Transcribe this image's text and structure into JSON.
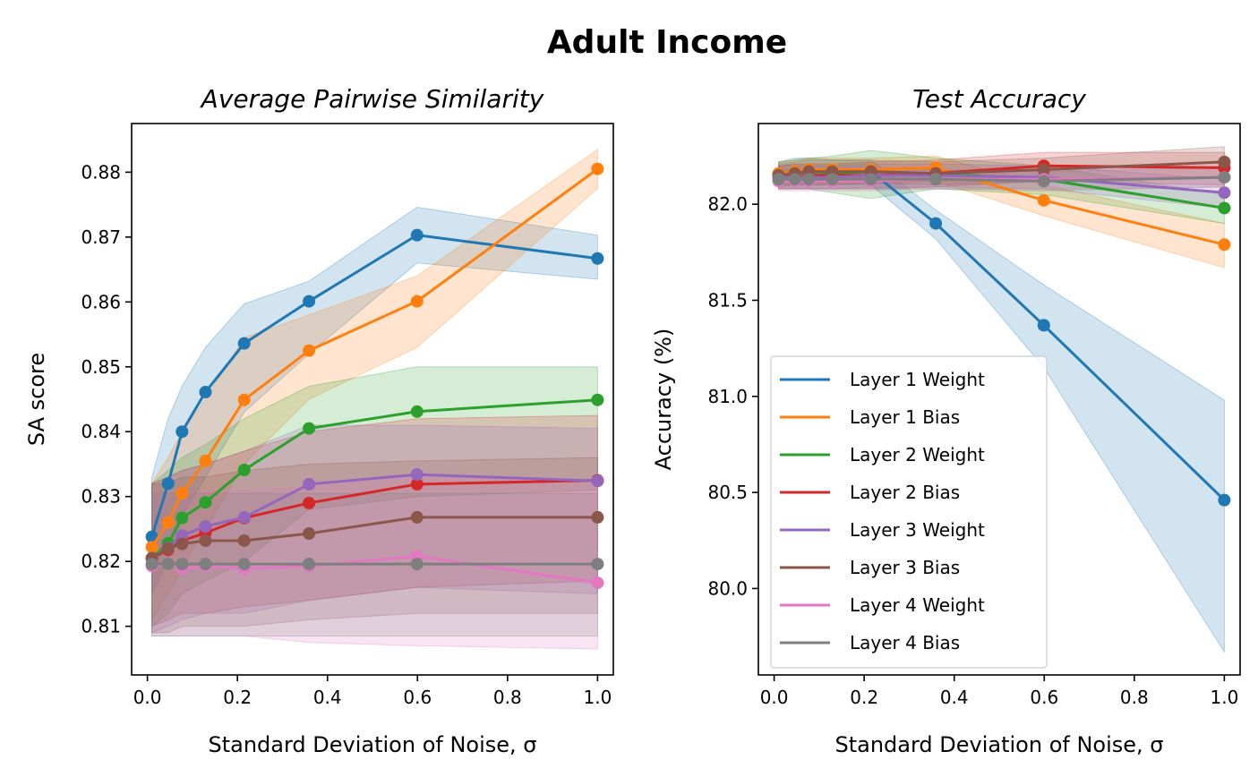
{
  "suptitle": "Adult Income",
  "chart_data": [
    {
      "type": "line",
      "title": "Average Pairwise Similarity",
      "xlabel": "Standard Deviation of Noise, σ",
      "ylabel": "SA score",
      "xlim": [
        -0.035,
        1.035
      ],
      "ylim": [
        0.8025,
        0.8875
      ],
      "xticks": [
        0.0,
        0.2,
        0.4,
        0.6,
        0.8,
        1.0
      ],
      "xtick_labels": [
        "0.0",
        "0.2",
        "0.4",
        "0.6",
        "0.8",
        "1.0"
      ],
      "yticks": [
        0.81,
        0.82,
        0.83,
        0.84,
        0.85,
        0.86,
        0.87,
        0.88
      ],
      "ytick_labels": [
        "0.81",
        "0.82",
        "0.83",
        "0.84",
        "0.85",
        "0.86",
        "0.87",
        "0.88"
      ],
      "x": [
        0.01,
        0.046,
        0.077,
        0.129,
        0.215,
        0.359,
        0.599,
        1.0
      ],
      "series": [
        {
          "name": "Layer 1 Weight",
          "color": "#1f77b4",
          "values": [
            0.8238,
            0.832,
            0.84,
            0.8461,
            0.8536,
            0.8601,
            0.8703,
            0.8667
          ],
          "lower": [
            0.815,
            0.82,
            0.827,
            0.833,
            0.843,
            0.852,
            0.866,
            0.8635
          ],
          "upper": [
            0.833,
            0.842,
            0.847,
            0.853,
            0.8597,
            0.8632,
            0.8746,
            0.8703
          ]
        },
        {
          "name": "Layer 1 Bias",
          "color": "#ff7f0e",
          "values": [
            0.8222,
            0.826,
            0.8305,
            0.8355,
            0.8449,
            0.8525,
            0.8601,
            0.8805
          ],
          "lower": [
            0.811,
            0.815,
            0.819,
            0.825,
            0.835,
            0.845,
            0.853,
            0.8775
          ],
          "upper": [
            0.832,
            0.836,
            0.84,
            0.845,
            0.8545,
            0.858,
            0.864,
            0.8835
          ]
        },
        {
          "name": "Layer 2 Weight",
          "color": "#2ca02c",
          "values": [
            0.8205,
            0.8228,
            0.8267,
            0.8291,
            0.8341,
            0.8405,
            0.8431,
            0.8449
          ],
          "lower": [
            0.81,
            0.812,
            0.815,
            0.817,
            0.82,
            0.828,
            0.83,
            0.831
          ],
          "upper": [
            0.832,
            0.834,
            0.836,
            0.838,
            0.842,
            0.847,
            0.85,
            0.85
          ]
        },
        {
          "name": "Layer 2 Bias",
          "color": "#d62728",
          "values": [
            0.8205,
            0.8218,
            0.8232,
            0.8244,
            0.8267,
            0.829,
            0.8319,
            0.8325
          ],
          "lower": [
            0.81,
            0.811,
            0.812,
            0.812,
            0.813,
            0.814,
            0.816,
            0.817
          ],
          "upper": [
            0.832,
            0.833,
            0.834,
            0.835,
            0.837,
            0.84,
            0.842,
            0.8425
          ]
        },
        {
          "name": "Layer 3 Weight",
          "color": "#9467bd",
          "values": [
            0.8205,
            0.8221,
            0.824,
            0.8254,
            0.8268,
            0.8319,
            0.8334,
            0.8324
          ],
          "lower": [
            0.809,
            0.81,
            0.811,
            0.812,
            0.812,
            0.814,
            0.816,
            0.815
          ],
          "upper": [
            0.832,
            0.833,
            0.834,
            0.835,
            0.837,
            0.841,
            0.841,
            0.8405
          ]
        },
        {
          "name": "Layer 3 Bias",
          "color": "#8c564b",
          "values": [
            0.8205,
            0.822,
            0.8227,
            0.8232,
            0.8232,
            0.8243,
            0.8268,
            0.8268
          ],
          "lower": [
            0.809,
            0.809,
            0.81,
            0.81,
            0.81,
            0.811,
            0.812,
            0.812
          ],
          "upper": [
            0.832,
            0.832,
            0.833,
            0.833,
            0.834,
            0.835,
            0.8355,
            0.836
          ]
        },
        {
          "name": "Layer 4 Weight",
          "color": "#e377c2",
          "values": [
            0.8193,
            0.8196,
            0.8189,
            0.8193,
            0.8189,
            0.8193,
            0.8208,
            0.8167
          ],
          "lower": [
            0.8085,
            0.8085,
            0.8085,
            0.8085,
            0.8085,
            0.8075,
            0.807,
            0.8065
          ],
          "upper": [
            0.8305,
            0.8305,
            0.8305,
            0.831,
            0.831,
            0.8315,
            0.833,
            0.8325
          ]
        },
        {
          "name": "Layer 4 Bias",
          "color": "#7f7f7f",
          "values": [
            0.8196,
            0.8196,
            0.8196,
            0.8196,
            0.8196,
            0.8196,
            0.8196,
            0.8196
          ],
          "lower": [
            0.8085,
            0.8085,
            0.8085,
            0.8085,
            0.8085,
            0.8085,
            0.8085,
            0.8085
          ],
          "upper": [
            0.8305,
            0.8305,
            0.8305,
            0.8305,
            0.8305,
            0.8305,
            0.8305,
            0.8305
          ]
        }
      ]
    },
    {
      "type": "line",
      "title": "Test Accuracy",
      "xlabel": "Standard Deviation of Noise, σ",
      "ylabel": "Accuracy (%)",
      "xlim": [
        -0.035,
        1.035
      ],
      "ylim": [
        79.55,
        82.42
      ],
      "xticks": [
        0.0,
        0.2,
        0.4,
        0.6,
        0.8,
        1.0
      ],
      "xtick_labels": [
        "0.0",
        "0.2",
        "0.4",
        "0.6",
        "0.8",
        "1.0"
      ],
      "yticks": [
        80.0,
        80.5,
        81.0,
        81.5,
        82.0
      ],
      "ytick_labels": [
        "80.0",
        "80.5",
        "81.0",
        "81.5",
        "82.0"
      ],
      "legend": "lower-left",
      "x": [
        0.01,
        0.046,
        0.077,
        0.129,
        0.215,
        0.359,
        0.599,
        1.0
      ],
      "series": [
        {
          "name": "Layer 1 Weight",
          "color": "#1f77b4",
          "values": [
            82.16,
            82.17,
            82.17,
            82.16,
            82.17,
            81.9,
            81.37,
            80.46
          ],
          "lower": [
            82.1,
            82.1,
            82.1,
            82.1,
            82.1,
            81.82,
            81.15,
            79.67
          ],
          "upper": [
            82.22,
            82.24,
            82.24,
            82.23,
            82.23,
            81.97,
            81.58,
            80.98
          ]
        },
        {
          "name": "Layer 1 Bias",
          "color": "#ff7f0e",
          "values": [
            82.16,
            82.17,
            82.18,
            82.18,
            82.18,
            82.19,
            82.02,
            81.79
          ],
          "lower": [
            82.1,
            82.1,
            82.11,
            82.11,
            82.11,
            82.12,
            81.94,
            81.67
          ],
          "upper": [
            82.22,
            82.23,
            82.24,
            82.24,
            82.24,
            82.25,
            82.1,
            81.9
          ]
        },
        {
          "name": "Layer 2 Weight",
          "color": "#2ca02c",
          "values": [
            82.15,
            82.16,
            82.17,
            82.16,
            82.17,
            82.16,
            82.13,
            81.98
          ],
          "lower": [
            82.08,
            82.08,
            82.08,
            82.06,
            82.03,
            82.08,
            82.05,
            81.9
          ],
          "upper": [
            82.22,
            82.23,
            82.24,
            82.25,
            82.28,
            82.24,
            82.2,
            82.05
          ]
        },
        {
          "name": "Layer 2 Bias",
          "color": "#d62728",
          "values": [
            82.14,
            82.14,
            82.15,
            82.15,
            82.15,
            82.16,
            82.2,
            82.19
          ],
          "lower": [
            82.08,
            82.08,
            82.08,
            82.08,
            82.08,
            82.09,
            82.12,
            82.1
          ],
          "upper": [
            82.2,
            82.21,
            82.21,
            82.21,
            82.22,
            82.23,
            82.27,
            82.27
          ]
        },
        {
          "name": "Layer 3 Weight",
          "color": "#9467bd",
          "values": [
            82.14,
            82.14,
            82.14,
            82.14,
            82.15,
            82.15,
            82.14,
            82.06
          ],
          "lower": [
            82.08,
            82.08,
            82.08,
            82.08,
            82.09,
            82.09,
            82.08,
            81.98
          ],
          "upper": [
            82.2,
            82.2,
            82.2,
            82.2,
            82.21,
            82.21,
            82.2,
            82.13
          ]
        },
        {
          "name": "Layer 3 Bias",
          "color": "#8c564b",
          "values": [
            82.15,
            82.16,
            82.17,
            82.17,
            82.17,
            82.16,
            82.18,
            82.22
          ],
          "lower": [
            82.09,
            82.1,
            82.1,
            82.1,
            82.11,
            82.1,
            82.12,
            82.14
          ],
          "upper": [
            82.21,
            82.22,
            82.23,
            82.23,
            82.23,
            82.22,
            82.24,
            82.3
          ]
        },
        {
          "name": "Layer 4 Weight",
          "color": "#e377c2",
          "values": [
            82.12,
            82.12,
            82.12,
            82.12,
            82.12,
            82.13,
            82.13,
            82.14
          ],
          "lower": [
            82.07,
            82.07,
            82.07,
            82.07,
            82.07,
            82.08,
            82.08,
            82.09
          ],
          "upper": [
            82.17,
            82.17,
            82.17,
            82.17,
            82.17,
            82.18,
            82.18,
            82.19
          ]
        },
        {
          "name": "Layer 4 Bias",
          "color": "#7f7f7f",
          "values": [
            82.13,
            82.13,
            82.13,
            82.13,
            82.13,
            82.13,
            82.12,
            82.14
          ],
          "lower": [
            82.08,
            82.08,
            82.08,
            82.08,
            82.08,
            82.08,
            82.07,
            82.09
          ],
          "upper": [
            82.18,
            82.18,
            82.18,
            82.18,
            82.18,
            82.18,
            82.17,
            82.19
          ]
        }
      ]
    }
  ]
}
